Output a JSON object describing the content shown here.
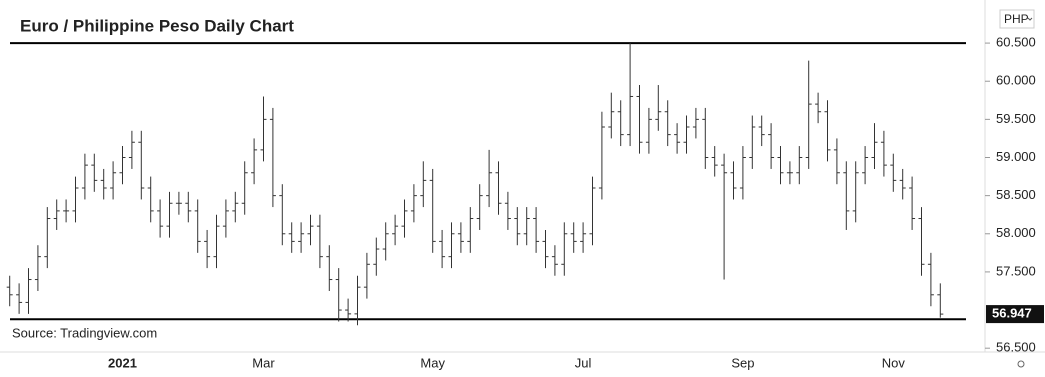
{
  "chart_data": {
    "type": "ohlc",
    "title": "Euro / Philippine Peso Daily Chart",
    "source": "Source: Tradingview.com",
    "currency": "PHP",
    "color": "#333333",
    "categories": [
      null,
      null,
      null,
      null,
      null,
      null,
      null,
      null,
      null,
      null,
      null,
      null,
      "2021",
      null,
      null,
      null,
      null,
      null,
      null,
      null,
      null,
      null,
      null,
      null,
      null,
      null,
      null,
      "Mar",
      null,
      null,
      null,
      null,
      null,
      null,
      null,
      null,
      null,
      null,
      null,
      null,
      null,
      null,
      null,
      null,
      null,
      "May",
      null,
      null,
      null,
      null,
      null,
      null,
      null,
      null,
      null,
      null,
      null,
      null,
      null,
      null,
      null,
      "Jul",
      null,
      null,
      null,
      null,
      null,
      null,
      null,
      null,
      null,
      null,
      null,
      null,
      null,
      null,
      null,
      null,
      "Sep",
      null,
      null,
      null,
      null,
      null,
      null,
      null,
      null,
      null,
      null,
      null,
      null,
      null,
      null,
      null,
      "Nov",
      null,
      null,
      null,
      null,
      null
    ],
    "series": [
      {
        "name": "EUR/PHP",
        "open": [
          57.3,
          57.2,
          57.1,
          57.4,
          57.7,
          58.2,
          58.3,
          58.3,
          58.6,
          58.9,
          58.7,
          58.6,
          58.8,
          59.0,
          59.2,
          58.6,
          58.3,
          58.1,
          58.4,
          58.4,
          58.3,
          57.9,
          57.7,
          58.1,
          58.3,
          58.4,
          58.8,
          59.1,
          59.5,
          58.5,
          58.0,
          57.9,
          58.0,
          58.1,
          57.7,
          57.4,
          57.0,
          56.95,
          57.3,
          57.6,
          57.8,
          58.0,
          58.1,
          58.3,
          58.5,
          58.7,
          57.9,
          57.7,
          58.0,
          57.9,
          58.2,
          58.5,
          58.8,
          58.4,
          58.2,
          58.0,
          58.2,
          57.9,
          57.7,
          57.6,
          58.0,
          57.9,
          58.0,
          58.6,
          59.4,
          59.6,
          59.3,
          59.8,
          59.2,
          59.5,
          59.6,
          59.3,
          59.2,
          59.4,
          59.5,
          59.0,
          58.9,
          58.8,
          58.6,
          59.0,
          59.4,
          59.3,
          59.0,
          58.8,
          58.8,
          59.0,
          59.7,
          59.6,
          59.1,
          58.8,
          58.3,
          58.8,
          59.0,
          59.2,
          58.9,
          58.7,
          58.6,
          58.2,
          57.6,
          57.2
        ],
        "high": [
          57.45,
          57.35,
          57.55,
          57.85,
          58.35,
          58.45,
          58.45,
          58.75,
          59.05,
          59.05,
          58.85,
          58.95,
          59.15,
          59.35,
          59.35,
          58.75,
          58.45,
          58.55,
          58.55,
          58.55,
          58.45,
          58.05,
          58.25,
          58.45,
          58.55,
          58.95,
          59.25,
          59.8,
          59.65,
          58.65,
          58.15,
          58.15,
          58.25,
          58.25,
          57.85,
          57.55,
          57.15,
          57.45,
          57.75,
          57.95,
          58.15,
          58.25,
          58.45,
          58.65,
          58.95,
          58.85,
          58.05,
          58.15,
          58.15,
          58.35,
          58.65,
          59.1,
          58.95,
          58.55,
          58.35,
          58.35,
          58.35,
          58.05,
          57.85,
          58.15,
          58.15,
          58.15,
          58.75,
          59.6,
          59.85,
          59.75,
          60.5,
          59.95,
          59.65,
          59.95,
          59.75,
          59.45,
          59.55,
          59.65,
          59.65,
          59.15,
          59.05,
          58.95,
          59.15,
          59.55,
          59.55,
          59.45,
          59.15,
          58.95,
          59.15,
          60.27,
          59.85,
          59.75,
          59.25,
          58.95,
          58.95,
          59.15,
          59.45,
          59.35,
          59.05,
          58.85,
          58.75,
          58.35,
          57.75,
          57.35
        ],
        "low": [
          57.05,
          56.95,
          56.95,
          57.25,
          57.55,
          58.05,
          58.15,
          58.15,
          58.45,
          58.55,
          58.45,
          58.45,
          58.65,
          58.85,
          58.45,
          58.15,
          57.95,
          57.95,
          58.25,
          58.15,
          57.75,
          57.55,
          57.55,
          57.95,
          58.15,
          58.25,
          58.65,
          58.95,
          58.35,
          57.85,
          57.75,
          57.75,
          57.85,
          57.55,
          57.25,
          56.85,
          56.85,
          56.8,
          57.15,
          57.45,
          57.65,
          57.85,
          57.95,
          58.15,
          58.35,
          57.75,
          57.55,
          57.55,
          57.75,
          57.75,
          58.05,
          58.35,
          58.25,
          58.05,
          57.85,
          57.85,
          57.75,
          57.55,
          57.45,
          57.45,
          57.75,
          57.75,
          57.85,
          58.45,
          59.25,
          59.15,
          59.15,
          59.05,
          59.05,
          59.35,
          59.15,
          59.05,
          59.05,
          59.25,
          58.85,
          58.75,
          57.4,
          58.45,
          58.45,
          58.85,
          59.15,
          58.85,
          58.65,
          58.65,
          58.65,
          58.85,
          59.45,
          58.95,
          58.65,
          58.05,
          58.15,
          58.65,
          58.85,
          58.75,
          58.55,
          58.45,
          58.05,
          57.45,
          57.05,
          56.9
        ],
        "close": [
          57.2,
          57.1,
          57.4,
          57.7,
          58.2,
          58.3,
          58.3,
          58.6,
          58.9,
          58.7,
          58.6,
          58.8,
          59.0,
          59.2,
          58.6,
          58.3,
          58.1,
          58.4,
          58.4,
          58.3,
          57.9,
          57.7,
          58.1,
          58.3,
          58.4,
          58.8,
          59.1,
          59.5,
          58.5,
          58.0,
          57.9,
          58.0,
          58.1,
          57.7,
          57.4,
          57.0,
          56.95,
          57.3,
          57.6,
          57.8,
          58.0,
          58.1,
          58.3,
          58.5,
          58.7,
          57.9,
          57.7,
          58.0,
          57.9,
          58.2,
          58.5,
          58.8,
          58.4,
          58.2,
          58.0,
          58.2,
          57.9,
          57.7,
          57.6,
          58.0,
          57.9,
          58.0,
          58.6,
          59.4,
          59.6,
          59.3,
          59.8,
          59.2,
          59.5,
          59.6,
          59.3,
          59.2,
          59.4,
          59.5,
          59.0,
          58.9,
          58.8,
          58.6,
          59.0,
          59.4,
          59.3,
          59.0,
          58.8,
          58.8,
          59.0,
          59.7,
          59.6,
          59.1,
          58.8,
          58.3,
          58.8,
          59.0,
          59.2,
          58.9,
          58.7,
          58.6,
          58.2,
          57.6,
          57.2,
          56.947
        ]
      }
    ],
    "levels": [
      60.5,
      56.88
    ],
    "ylim": [
      56.45,
      60.96
    ],
    "yticks": [
      {
        "value": 60.5,
        "label": "60.500"
      },
      {
        "value": 60,
        "label": "60.000"
      },
      {
        "value": 59.5,
        "label": "59.500"
      },
      {
        "value": 59,
        "label": "59.000"
      },
      {
        "value": 58.5,
        "label": "58.500"
      },
      {
        "value": 58,
        "label": "58.000"
      },
      {
        "value": 57.5,
        "label": "57.500"
      },
      {
        "value": 56.5,
        "label": "56.500"
      }
    ],
    "grid": false
  }
}
